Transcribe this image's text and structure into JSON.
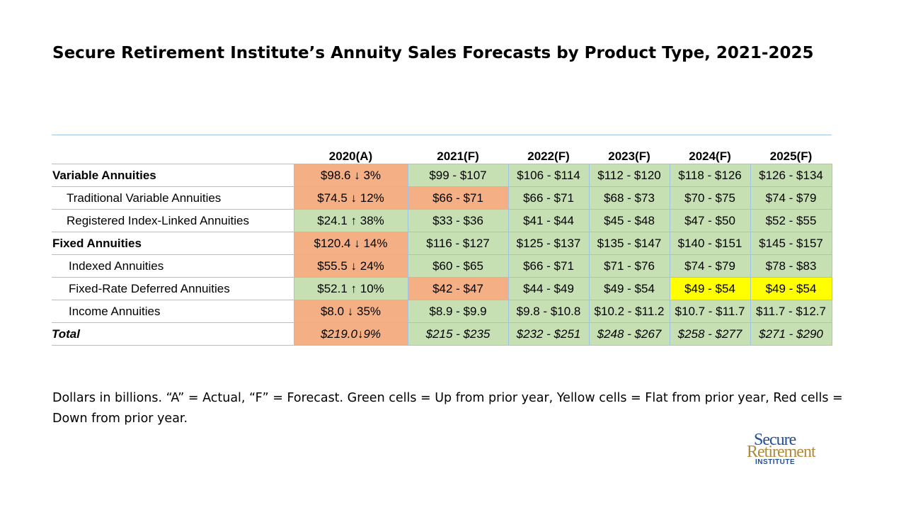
{
  "title": "Secure Retirement Institute’s Annuity Sales Forecasts by Product Type, 2021-2025",
  "table": {
    "headers": [
      "",
      "2020(A)",
      "2021(F)",
      "2022(F)",
      "2023(F)",
      "2024(F)",
      "2025(F)"
    ],
    "rows": [
      {
        "label": "Variable Annuities",
        "a_value": "$98.6",
        "a_arrow": "↓",
        "a_pct": " 3%",
        "cells": [
          "$99 - $107",
          "$106 - $114",
          "$112 - $120",
          "$118 - $126",
          "$126 - $134"
        ]
      },
      {
        "label": "Traditional Variable Annuities",
        "a_value": "$74.5",
        "a_arrow": "↓",
        "a_pct": " 12%",
        "cells": [
          "$66 - $71",
          "$66 - $71",
          "$68 - $73",
          "$70 - $75",
          "$74 - $79"
        ]
      },
      {
        "label": "Registered Index-Linked Annuities",
        "a_value": "$24.1",
        "a_arrow": "↑",
        "a_pct": " 38%",
        "cells": [
          "$33 - $36",
          "$41 - $44",
          "$45 - $48",
          "$47 - $50",
          "$52 - $55"
        ]
      },
      {
        "label": "Fixed Annuities",
        "a_value": "$120.4 ",
        "a_arrow": "↓",
        "a_pct": " 14%",
        "cells": [
          "$116 - $127",
          "$125 - $137",
          "$135 - $147",
          "$140 - $151",
          "$145 - $157"
        ]
      },
      {
        "label": "Indexed Annuities",
        "a_value": "$55.5",
        "a_arrow": "↓",
        "a_pct": " 24%",
        "cells": [
          "$60 - $65",
          "$66 - $71",
          "$71 - $76",
          "$74 - $79",
          "$78 - $83"
        ]
      },
      {
        "label": "Fixed-Rate Deferred Annuities",
        "a_value": "$52.1",
        "a_arrow": "↑",
        "a_pct": " 10%",
        "cells": [
          "$42 - $47",
          "$44 - $49",
          "$49 - $54",
          "$49 - $54",
          "$49 - $54"
        ]
      },
      {
        "label": "Income Annuities",
        "a_value": "$8.0",
        "a_arrow": "↓",
        "a_pct": " 35%",
        "cells": [
          "$8.9 - $9.9",
          "$9.8 - $10.8",
          "$10.2 - $11.2",
          "$10.7 - $11.7",
          "$11.7 - $12.7"
        ]
      },
      {
        "label": "Total",
        "a_value": "$219.0",
        "a_arrow": "↓",
        "a_pct": "9%",
        "cells": [
          "$215 - $235",
          "$232 - $251",
          "$248 - $267",
          "$258 - $277",
          "$271 - $290"
        ]
      }
    ],
    "colors": {
      "green": "#c6e0b4",
      "red": "#f4b084",
      "yellow": "#ffff00",
      "border": "#9dc3e6"
    }
  },
  "footnote": "Dollars in billions. “A” = Actual, “F” = Forecast. Green cells = Up from prior year, Yellow cells = Flat from prior year, Red cells = Down from prior year.",
  "logo": {
    "line1": "Secure",
    "line2": "Retirement",
    "line3": "INSTITUTE"
  }
}
